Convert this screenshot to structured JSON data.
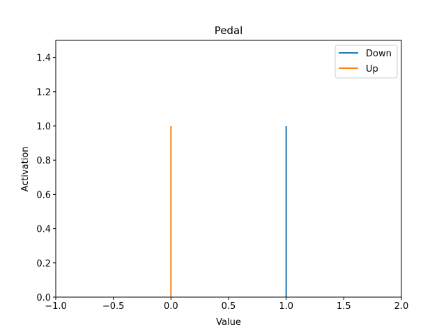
{
  "chart_data": {
    "type": "line",
    "title": "Pedal",
    "xlabel": "Value",
    "ylabel": "Activation",
    "xlim": [
      -1.0,
      2.0
    ],
    "ylim": [
      0.0,
      1.5
    ],
    "xticks": [
      -1.0,
      -0.5,
      0.0,
      0.5,
      1.0,
      1.5,
      2.0
    ],
    "xtick_labels": [
      "−1.0",
      "−0.5",
      "0.0",
      "0.5",
      "1.0",
      "1.5",
      "2.0"
    ],
    "yticks": [
      0.0,
      0.2,
      0.4,
      0.6,
      0.8,
      1.0,
      1.2,
      1.4
    ],
    "ytick_labels": [
      "0.0",
      "0.2",
      "0.4",
      "0.6",
      "0.8",
      "1.0",
      "1.2",
      "1.4"
    ],
    "grid": false,
    "legend_position": "top-right",
    "series": [
      {
        "name": "Down",
        "color": "#1f77b4",
        "x": [
          1.0,
          1.0
        ],
        "y": [
          0.0,
          1.0
        ]
      },
      {
        "name": "Up",
        "color": "#ff7f0e",
        "x": [
          0.0,
          0.0
        ],
        "y": [
          0.0,
          1.0
        ]
      }
    ]
  }
}
